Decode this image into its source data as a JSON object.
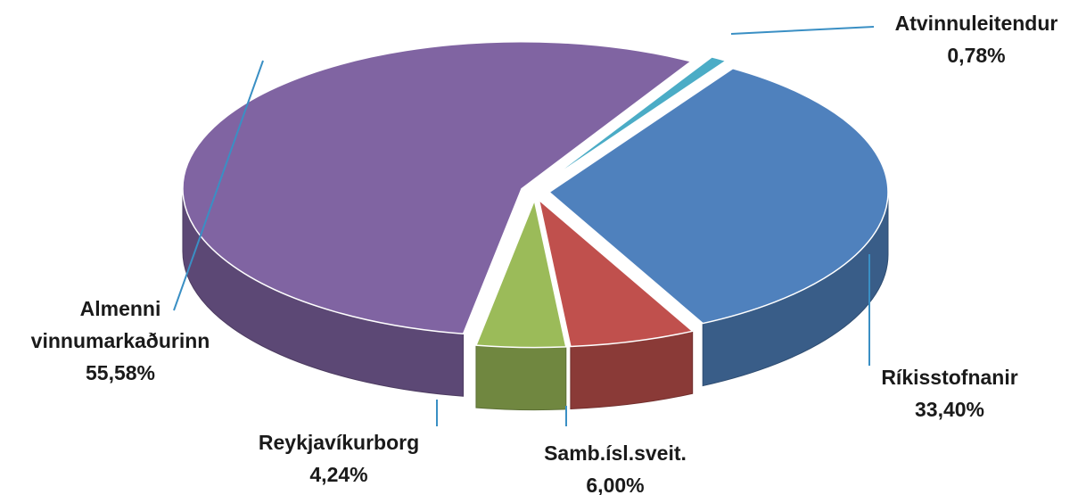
{
  "chart_data": {
    "type": "pie",
    "categories": [
      "Atvinnuleitendur",
      "Ríkisstofnanir",
      "Samb.ísl.sveit.",
      "Reykjavíkurborg",
      "Almenni vinnumarkaðurinn"
    ],
    "values": [
      0.78,
      33.4,
      6.0,
      4.24,
      55.58
    ],
    "value_labels": [
      "0,78%",
      "33,40%",
      "6,00%",
      "4,24%",
      "55,58%"
    ],
    "colors": [
      "#4bacc6",
      "#4f81bd",
      "#c0504d",
      "#9bbb59",
      "#8064a2"
    ]
  }
}
